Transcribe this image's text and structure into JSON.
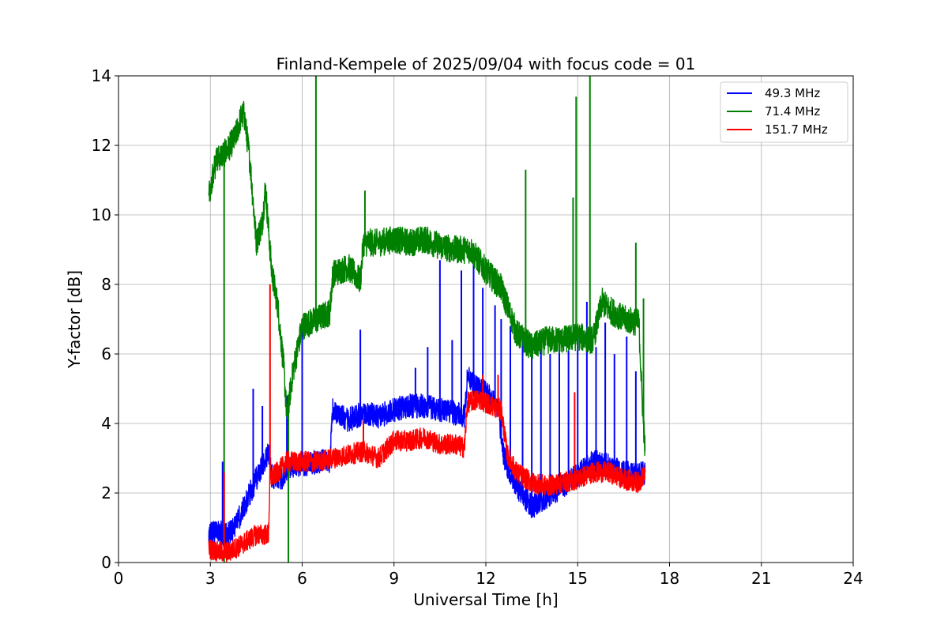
{
  "chart_data": {
    "type": "line",
    "title": "Finland-Kempele of 2025/09/04 with focus code = 01",
    "xlabel": "Universal Time [h]",
    "ylabel": "Y-factor [dB]",
    "xlim": [
      0,
      24
    ],
    "ylim": [
      0,
      14
    ],
    "xticks": [
      0,
      3,
      6,
      9,
      12,
      15,
      18,
      21,
      24
    ],
    "yticks": [
      0,
      2,
      4,
      6,
      8,
      10,
      12,
      14
    ],
    "grid": true,
    "legend_position": "top-right",
    "series": [
      {
        "name": "49.3 MHz",
        "legend_label": "  49.3 MHz",
        "color": "#0000ff",
        "noise": 0.35,
        "x": [
          2.95,
          3.2,
          3.5,
          3.8,
          4.0,
          4.3,
          4.6,
          4.9,
          5.0,
          5.3,
          5.5,
          5.7,
          6.0,
          6.5,
          6.9,
          7.0,
          7.5,
          8.0,
          8.5,
          9.0,
          9.5,
          10.0,
          10.5,
          11.0,
          11.3,
          11.4,
          11.7,
          12.0,
          12.4,
          12.5,
          12.6,
          13.0,
          13.5,
          14.0,
          14.5,
          15.0,
          15.5,
          16.0,
          16.5,
          17.0,
          17.2
        ],
        "y": [
          0.8,
          0.9,
          0.8,
          1.0,
          1.4,
          2.0,
          2.6,
          3.2,
          2.5,
          2.4,
          2.7,
          2.8,
          2.8,
          2.9,
          2.9,
          4.4,
          4.1,
          4.3,
          4.2,
          4.4,
          4.5,
          4.5,
          4.4,
          4.3,
          4.2,
          5.4,
          5.0,
          4.9,
          4.4,
          3.6,
          3.0,
          2.2,
          1.6,
          1.9,
          2.2,
          2.5,
          2.9,
          2.8,
          2.6,
          2.5,
          2.6
        ],
        "spikes": [
          {
            "x": 3.4,
            "y": 2.9
          },
          {
            "x": 4.4,
            "y": 5.0
          },
          {
            "x": 4.7,
            "y": 4.5
          },
          {
            "x": 5.5,
            "y": 4.8
          },
          {
            "x": 6.0,
            "y": 6.8
          },
          {
            "x": 7.9,
            "y": 6.7
          },
          {
            "x": 9.7,
            "y": 5.6
          },
          {
            "x": 10.1,
            "y": 6.2
          },
          {
            "x": 10.5,
            "y": 8.7
          },
          {
            "x": 10.9,
            "y": 6.4
          },
          {
            "x": 11.2,
            "y": 8.4
          },
          {
            "x": 11.6,
            "y": 8.8
          },
          {
            "x": 11.9,
            "y": 7.9
          },
          {
            "x": 12.3,
            "y": 7.4
          },
          {
            "x": 12.5,
            "y": 7.0
          },
          {
            "x": 12.8,
            "y": 6.8
          },
          {
            "x": 13.2,
            "y": 6.6
          },
          {
            "x": 13.5,
            "y": 6.2
          },
          {
            "x": 13.8,
            "y": 6.5
          },
          {
            "x": 14.1,
            "y": 6.0
          },
          {
            "x": 14.4,
            "y": 6.3
          },
          {
            "x": 14.7,
            "y": 6.1
          },
          {
            "x": 15.0,
            "y": 6.5
          },
          {
            "x": 15.3,
            "y": 7.5
          },
          {
            "x": 15.6,
            "y": 6.2
          },
          {
            "x": 15.9,
            "y": 6.9
          },
          {
            "x": 16.2,
            "y": 6.0
          },
          {
            "x": 16.6,
            "y": 6.5
          },
          {
            "x": 16.9,
            "y": 5.5
          }
        ]
      },
      {
        "name": "71.4 MHz",
        "legend_label": "  71.4 MHz",
        "color": "#008000",
        "noise": 0.4,
        "x": [
          2.95,
          3.2,
          3.5,
          3.8,
          4.0,
          4.1,
          4.3,
          4.5,
          4.7,
          4.8,
          5.0,
          5.2,
          5.4,
          5.5,
          5.7,
          6.0,
          6.5,
          6.9,
          7.0,
          7.5,
          7.9,
          8.0,
          8.5,
          9.0,
          9.5,
          10.0,
          10.5,
          11.0,
          11.5,
          12.0,
          12.5,
          13.0,
          13.5,
          14.0,
          14.5,
          15.0,
          15.5,
          15.8,
          16.0,
          16.5,
          17.0,
          17.1,
          17.2
        ],
        "y": [
          10.6,
          11.6,
          11.8,
          12.2,
          12.8,
          12.9,
          11.5,
          9.2,
          9.8,
          10.8,
          8.4,
          7.4,
          5.6,
          4.2,
          5.5,
          6.8,
          7.0,
          7.2,
          8.3,
          8.5,
          8.1,
          9.2,
          9.2,
          9.3,
          9.2,
          9.3,
          9.1,
          9.0,
          9.0,
          8.4,
          7.9,
          6.6,
          6.2,
          6.4,
          6.4,
          6.5,
          6.4,
          7.5,
          7.3,
          7.0,
          6.9,
          4.8,
          3.2
        ],
        "spikes": [
          {
            "x": 3.45,
            "y": 0.0
          },
          {
            "x": 5.55,
            "y": 0.0
          },
          {
            "x": 6.45,
            "y": 14.0
          },
          {
            "x": 8.05,
            "y": 10.7
          },
          {
            "x": 13.3,
            "y": 11.3
          },
          {
            "x": 14.85,
            "y": 10.5
          },
          {
            "x": 14.95,
            "y": 13.4
          },
          {
            "x": 15.4,
            "y": 14.0
          },
          {
            "x": 16.9,
            "y": 9.2
          },
          {
            "x": 17.15,
            "y": 7.6
          }
        ]
      },
      {
        "name": "151.7 MHz",
        "legend_label": " 151.7 MHz",
        "color": "#ff0000",
        "noise": 0.3,
        "x": [
          2.95,
          3.3,
          3.6,
          4.0,
          4.5,
          4.9,
          4.95,
          5.2,
          5.5,
          6.0,
          6.5,
          7.0,
          7.5,
          8.0,
          8.5,
          9.0,
          9.5,
          10.0,
          10.5,
          11.0,
          11.3,
          11.4,
          11.8,
          12.2,
          12.5,
          12.7,
          13.0,
          13.5,
          14.0,
          14.5,
          15.0,
          15.5,
          16.0,
          16.5,
          17.0,
          17.2
        ],
        "y": [
          0.4,
          0.3,
          0.3,
          0.5,
          0.8,
          0.8,
          2.4,
          2.6,
          2.9,
          2.9,
          2.9,
          3.0,
          3.1,
          3.2,
          3.0,
          3.5,
          3.5,
          3.6,
          3.4,
          3.4,
          3.3,
          4.6,
          4.7,
          4.5,
          4.4,
          3.1,
          2.6,
          2.3,
          2.2,
          2.3,
          2.4,
          2.6,
          2.6,
          2.4,
          2.3,
          2.6
        ],
        "spikes": [
          {
            "x": 4.95,
            "y": 8.0
          },
          {
            "x": 3.45,
            "y": 2.6
          },
          {
            "x": 8.0,
            "y": 4.1
          },
          {
            "x": 11.9,
            "y": 5.4
          },
          {
            "x": 12.4,
            "y": 5.4
          },
          {
            "x": 14.9,
            "y": 4.9
          }
        ]
      }
    ]
  }
}
